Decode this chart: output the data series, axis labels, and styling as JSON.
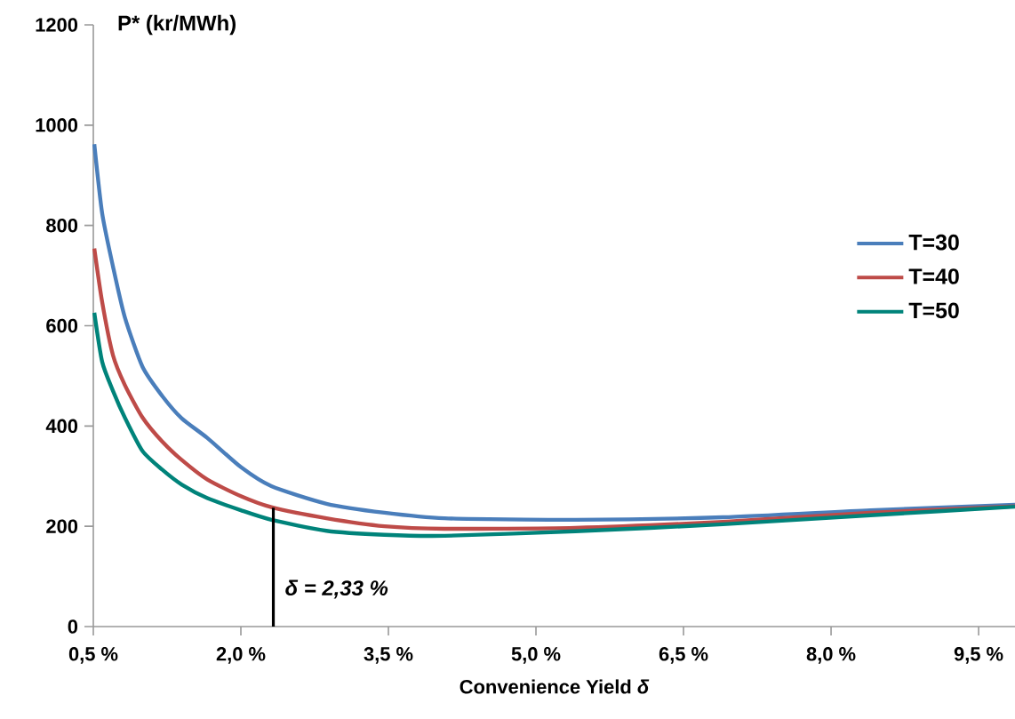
{
  "chart_data": {
    "type": "line",
    "xlabel": "Convenience Yield *δ*",
    "ylabel": "P* (kr/MWh)",
    "xlim": [
      0.5,
      9.87
    ],
    "ylim": [
      0,
      1200
    ],
    "xticks": [
      {
        "value": 0.5,
        "label": "0,5 %"
      },
      {
        "value": 2.0,
        "label": "2,0 %"
      },
      {
        "value": 3.5,
        "label": "3,5 %"
      },
      {
        "value": 5.0,
        "label": "5,0 %"
      },
      {
        "value": 6.5,
        "label": "6,5 %"
      },
      {
        "value": 8.0,
        "label": "8,0 %"
      },
      {
        "value": 9.5,
        "label": "9,5 %"
      }
    ],
    "yticks": [
      0,
      200,
      400,
      600,
      800,
      1000,
      1200
    ],
    "x": [
      0.51,
      0.59,
      0.7,
      0.82,
      1.0,
      1.2,
      1.4,
      1.66,
      2.0,
      2.31,
      2.87,
      3.46,
      4.07,
      5.4,
      6.9,
      8.4,
      9.87
    ],
    "series": [
      {
        "name": "T=30",
        "color": "#4a7ebb",
        "values": [
          962,
          824,
          718,
          617,
          518,
          460,
          415,
          376,
          318,
          280,
          245,
          227,
          216,
          213,
          218,
          232,
          243
        ]
      },
      {
        "name": "T=40",
        "color": "#be4b48",
        "values": [
          754,
          647,
          541,
          482,
          417,
          369,
          332,
          293,
          260,
          238,
          216,
          200,
          195,
          197,
          209,
          227,
          240
        ]
      },
      {
        "name": "T=50",
        "color": "#00837a",
        "values": [
          626,
          528,
          470,
          417,
          350,
          313,
          283,
          256,
          232,
          213,
          191,
          183,
          181,
          190,
          204,
          222,
          239
        ]
      }
    ],
    "ref_lines": [
      {
        "axis": "x",
        "value": 2.33,
        "label": "δ = 2,33 %",
        "color": "#000000"
      }
    ],
    "legend": "right",
    "grid": false,
    "marker": "none",
    "line_style": "solid"
  }
}
